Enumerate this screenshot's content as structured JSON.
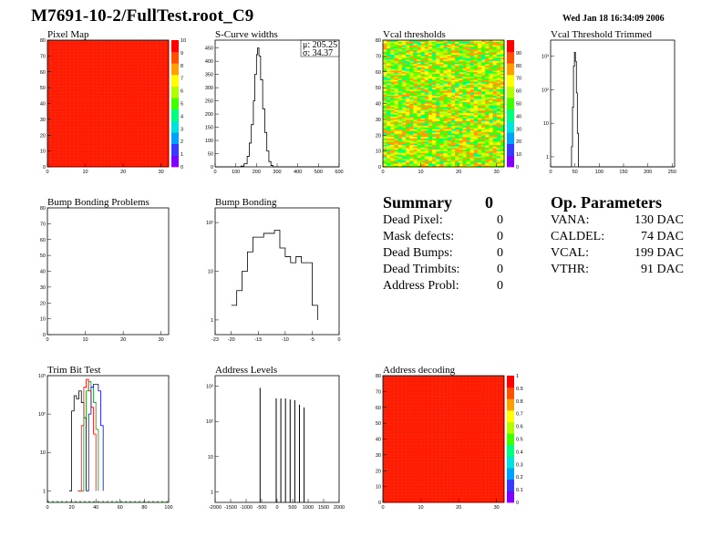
{
  "header": {
    "title": "M7691-10-2/FullTest.root_C9",
    "date": "Wed Jan 18 16:34:09 2006"
  },
  "colors": {
    "red": "#ff1a00",
    "palette": [
      "#7f00ff",
      "#3a3aff",
      "#00a0ff",
      "#00e0e0",
      "#00ff80",
      "#40ff00",
      "#b0ff00",
      "#ffff00",
      "#ffa000",
      "#ff5000",
      "#ff0000"
    ]
  },
  "summary": {
    "title": "Summary",
    "total": "0",
    "rows": [
      {
        "label": "Dead Pixel:",
        "value": "0"
      },
      {
        "label": "Mask defects:",
        "value": "0"
      },
      {
        "label": "Dead Bumps:",
        "value": "0"
      },
      {
        "label": "Dead Trimbits:",
        "value": "0"
      },
      {
        "label": "Address Probl:",
        "value": "0"
      }
    ]
  },
  "op_params": {
    "title": "Op. Parameters",
    "rows": [
      {
        "label": "VANA:",
        "value": "130 DAC"
      },
      {
        "label": "CALDEL:",
        "value": "74 DAC"
      },
      {
        "label": "VCAL:",
        "value": "199 DAC"
      },
      {
        "label": "VTHR:",
        "value": "91 DAC"
      }
    ]
  },
  "chart_data": [
    {
      "id": "pixel-map",
      "type": "heatmap",
      "title": "Pixel Map",
      "xlim": [
        0,
        32
      ],
      "ylim": [
        0,
        80
      ],
      "xticks": [
        0,
        10,
        20,
        30
      ],
      "yticks": [
        0,
        10,
        20,
        30,
        40,
        50,
        60,
        70,
        80
      ],
      "zlim": [
        0,
        10
      ],
      "zticks": [
        0,
        1,
        2,
        3,
        4,
        5,
        6,
        7,
        8,
        9,
        10
      ],
      "uniform_value": 10,
      "color": "#ff1a00"
    },
    {
      "id": "s-curve-widths",
      "type": "line",
      "title": "S-Curve widths",
      "xlim": [
        0,
        600
      ],
      "ylim": [
        0,
        480
      ],
      "xticks": [
        0,
        100,
        200,
        300,
        400,
        500,
        600
      ],
      "yticks": [
        0,
        50,
        100,
        150,
        200,
        250,
        300,
        350,
        400,
        450
      ],
      "x": [
        0,
        110,
        125,
        140,
        155,
        165,
        175,
        185,
        192,
        200,
        205,
        212,
        220,
        230,
        240,
        250,
        260,
        270,
        280,
        600
      ],
      "y": [
        0,
        0,
        3,
        12,
        40,
        90,
        160,
        250,
        350,
        425,
        450,
        420,
        330,
        220,
        130,
        60,
        20,
        5,
        0,
        0
      ],
      "stats": {
        "mean": "μ: 205.25",
        "sigma": "σ: 34.37"
      }
    },
    {
      "id": "vcal-thresholds",
      "type": "heatmap",
      "title": "Vcal thresholds",
      "xlim": [
        0,
        32
      ],
      "ylim": [
        0,
        80
      ],
      "xticks": [
        0,
        10,
        20,
        30
      ],
      "yticks": [
        0,
        10,
        20,
        30,
        40,
        50,
        60,
        70,
        80
      ],
      "zlim": [
        0,
        100
      ],
      "zticks": [
        0,
        10,
        20,
        30,
        40,
        50,
        60,
        70,
        80,
        90
      ],
      "value_range": [
        40,
        85
      ]
    },
    {
      "id": "vcal-threshold-trimmed",
      "type": "line",
      "title": "Vcal Threshold Trimmed",
      "xlim": [
        0,
        255
      ],
      "ylim": [
        0.5,
        3000
      ],
      "log_y": true,
      "xticks": [
        0,
        50,
        100,
        150,
        200,
        250
      ],
      "yticks": [
        1,
        10,
        100,
        1000
      ],
      "x": [
        0,
        40,
        43,
        45,
        47,
        49,
        51,
        53,
        55,
        57,
        255
      ],
      "y": [
        0.5,
        0.5,
        2,
        30,
        500,
        1300,
        700,
        80,
        5,
        0.5,
        0.5
      ]
    },
    {
      "id": "bump-bonding-problems",
      "type": "heatmap",
      "title": "Bump Bonding Problems",
      "xlim": [
        0,
        32
      ],
      "ylim": [
        0,
        80
      ],
      "xticks": [
        0,
        10,
        20,
        30
      ],
      "yticks": [
        0,
        10,
        20,
        30,
        40,
        50,
        60,
        70,
        80
      ],
      "uniform_value": 0
    },
    {
      "id": "bump-bonding",
      "type": "line",
      "title": "Bump Bonding",
      "xlim": [
        -23,
        0
      ],
      "ylim": [
        0.5,
        200
      ],
      "log_y": true,
      "xticks": [
        -23,
        -20,
        -15,
        -10,
        -5,
        0
      ],
      "xticklabels": [
        "-23",
        "-20",
        "-15",
        "-10",
        "-5",
        "0"
      ],
      "yticks": [
        1,
        10,
        100
      ],
      "x": [
        -20,
        -19,
        -18,
        -17,
        -16,
        -15,
        -14,
        -13,
        -12,
        -11,
        -10,
        -9,
        -8,
        -7,
        -6,
        -5,
        -4
      ],
      "y": [
        2,
        4,
        10,
        25,
        50,
        50,
        60,
        60,
        70,
        30,
        20,
        15,
        20,
        15,
        15,
        2,
        1
      ]
    },
    {
      "id": "trim-bit-test",
      "type": "line",
      "title": "Trim Bit Test",
      "xlim": [
        0,
        100
      ],
      "ylim": [
        0.5,
        1000
      ],
      "log_y": true,
      "xticks": [
        0,
        20,
        40,
        60,
        80,
        100
      ],
      "yticks": [
        1,
        10,
        100,
        1000
      ],
      "series": [
        {
          "color": "#000000",
          "x": [
            18,
            20,
            22,
            24,
            26,
            28,
            30,
            32
          ],
          "y": [
            1,
            120,
            300,
            250,
            400,
            200,
            80,
            1
          ]
        },
        {
          "color": "#ff0000",
          "x": [
            25,
            28,
            30,
            32,
            34,
            36,
            38,
            40
          ],
          "y": [
            1,
            50,
            500,
            800,
            400,
            150,
            30,
            1
          ]
        },
        {
          "color": "#00a000",
          "x": [
            28,
            30,
            32,
            34,
            36,
            38,
            40,
            42
          ],
          "y": [
            1,
            80,
            400,
            700,
            500,
            200,
            40,
            1
          ]
        },
        {
          "color": "#0000ff",
          "x": [
            32,
            34,
            36,
            38,
            40,
            42,
            44,
            46
          ],
          "y": [
            1,
            100,
            500,
            600,
            600,
            400,
            50,
            1
          ]
        }
      ],
      "baseline_color": "#00a000"
    },
    {
      "id": "address-levels",
      "type": "line",
      "title": "Address Levels",
      "xlim": [
        -2000,
        2000
      ],
      "ylim": [
        0.5,
        2000
      ],
      "log_y": true,
      "xticks": [
        -2000,
        -1500,
        -1000,
        -500,
        0,
        500,
        1000,
        1500,
        2000
      ],
      "yticks": [
        1,
        10,
        100,
        1000
      ],
      "peaks_x": [
        -550,
        -30,
        120,
        270,
        420,
        570,
        720,
        870
      ],
      "peaks_y": [
        900,
        450,
        450,
        450,
        420,
        400,
        300,
        250
      ]
    },
    {
      "id": "address-decoding",
      "type": "heatmap",
      "title": "Address decoding",
      "xlim": [
        0,
        32
      ],
      "ylim": [
        0,
        80
      ],
      "xticks": [
        0,
        10,
        20,
        30
      ],
      "yticks": [
        0,
        10,
        20,
        30,
        40,
        50,
        60,
        70,
        80
      ],
      "zlim": [
        0,
        1
      ],
      "zticks": [
        0,
        0.1,
        0.2,
        0.3,
        0.4,
        0.5,
        0.6,
        0.7,
        0.8,
        0.9,
        1
      ],
      "uniform_value": 1,
      "color": "#ff1a00"
    }
  ]
}
